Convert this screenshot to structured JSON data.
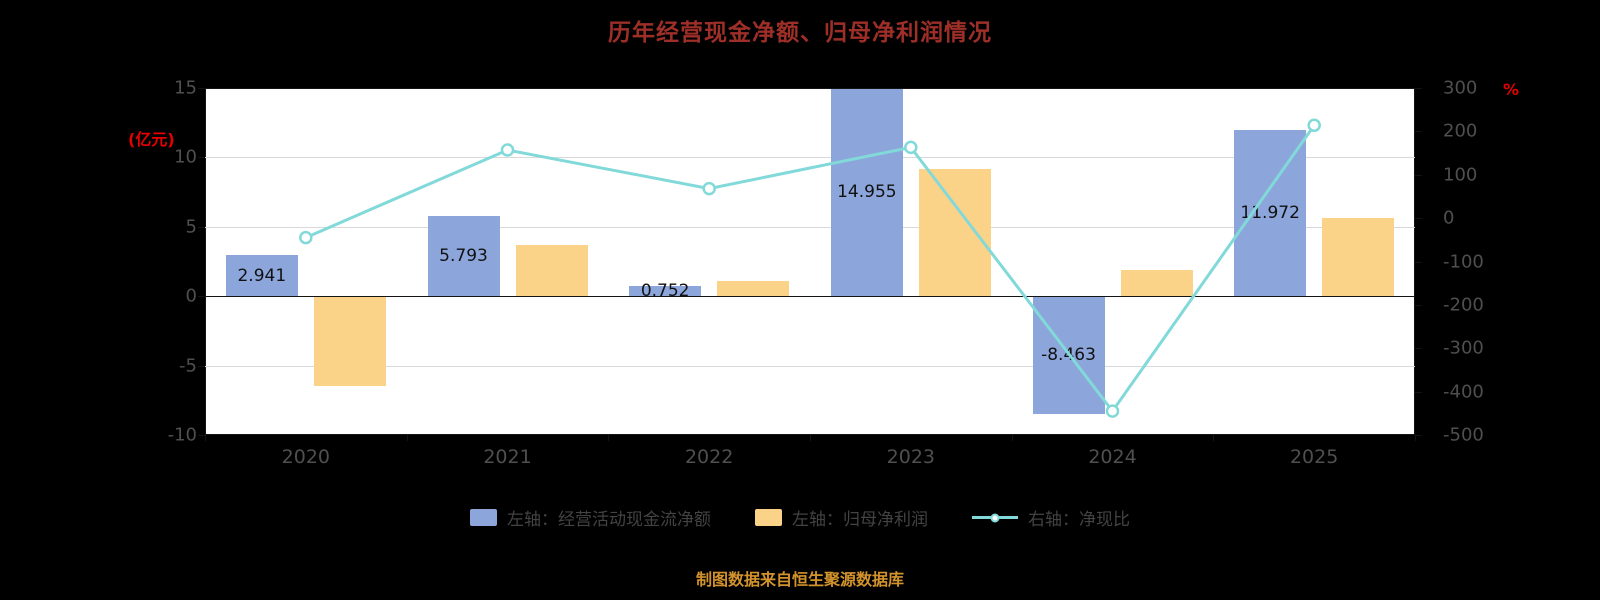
{
  "title": "历年经营现金净额、归母净利润情况",
  "source_note": "制图数据来自恒生聚源数据库",
  "colors": {
    "background": "#000000",
    "plot_background": "#ffffff",
    "title": "#9e2f28",
    "axis_unit": "#e60000",
    "axis_text": "#4f4f4f",
    "bar_label": "#111111",
    "legend_text": "#434343",
    "source": "#d3932c",
    "grid": "#d9d9d9",
    "axis_line": "#141414",
    "cashflow_bar": "#8ca6db",
    "profit_bar": "#fad389",
    "ratio_line": "#82d9d9"
  },
  "chart_data": {
    "type": "bar+line",
    "title": "历年经营现金净额、归母净利润情况",
    "categories": [
      "2020",
      "2021",
      "2022",
      "2023",
      "2024",
      "2025"
    ],
    "left_axis": {
      "unit": "(亿元)",
      "min": -10,
      "max": 15,
      "ticks": [
        15,
        10,
        5,
        0,
        -5,
        -10
      ]
    },
    "right_axis": {
      "unit": "%",
      "min": -500,
      "max": 300,
      "ticks": [
        300,
        200,
        100,
        0,
        -100,
        -200,
        -300,
        -400,
        -500
      ]
    },
    "grid": true,
    "legend_position": "bottom",
    "series": [
      {
        "name": "左轴：经营活动现金流净额",
        "type": "bar",
        "axis": "left",
        "color": "#8ca6db",
        "values": [
          2.941,
          5.793,
          0.752,
          14.955,
          -8.463,
          11.972
        ],
        "labels": [
          "2.941",
          "5.793",
          "0.752",
          "14.955",
          "-8.463",
          "11.972"
        ]
      },
      {
        "name": "左轴：归母净利润",
        "type": "bar",
        "axis": "left",
        "color": "#fad389",
        "values": [
          -6.5,
          3.7,
          1.1,
          9.2,
          1.9,
          5.6
        ]
      },
      {
        "name": "右轴：净现比",
        "type": "line",
        "axis": "right",
        "color": "#82d9d9",
        "values": [
          -45,
          157,
          68,
          163,
          -445,
          214
        ]
      }
    ]
  }
}
